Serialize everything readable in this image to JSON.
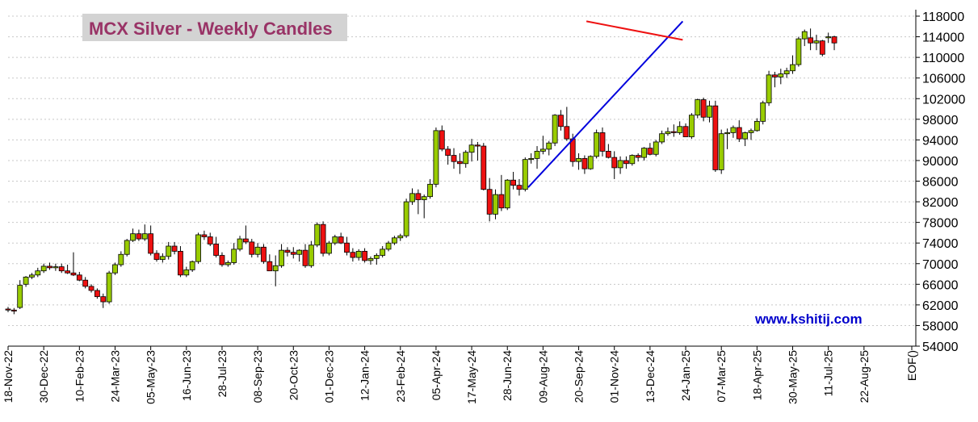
{
  "chart_data": {
    "type": "candlestick",
    "title": "MCX Silver - Weekly Candles",
    "watermark": "www.kshitij.com",
    "y_axis": {
      "ylim": [
        54000,
        118000
      ],
      "ticks": [
        54000,
        58000,
        62000,
        66000,
        70000,
        74000,
        78000,
        82000,
        86000,
        90000,
        94000,
        98000,
        102000,
        106000,
        110000,
        114000,
        118000
      ],
      "position": "right"
    },
    "x_axis": {
      "tick_labels": [
        "18-Nov-22",
        "30-Dec-22",
        "10-Feb-23",
        "24-Mar-23",
        "05-May-23",
        "16-Jun-23",
        "28-Jul-23",
        "08-Sep-23",
        "20-Oct-23",
        "01-Dec-23",
        "12-Jan-24",
        "23-Feb-24",
        "05-Apr-24",
        "17-May-24",
        "28-Jun-24",
        "09-Aug-24",
        "20-Sep-24",
        "01-Nov-24",
        "13-Dec-24",
        "24-Jan-25",
        "07-Mar-25",
        "18-Apr-25",
        "30-May-25",
        "11-Jul-25",
        "22-Aug-25",
        "EOF()"
      ],
      "weeks_between_labels": 6
    },
    "colors": {
      "bull": "#99cc00",
      "bear": "#ee1111",
      "support_line": "#0000dd",
      "resistance_line": "#ee1111",
      "title": "#993366",
      "watermark": "#0000cc"
    },
    "grid": "horizontal-dashed",
    "candles": [
      [
        61200,
        61600,
        60600,
        61000
      ],
      [
        61000,
        61400,
        60200,
        60800
      ],
      [
        61500,
        66800,
        61200,
        65800
      ],
      [
        66000,
        67600,
        65500,
        67400
      ],
      [
        67400,
        68200,
        67000,
        67800
      ],
      [
        67800,
        69200,
        67400,
        68600
      ],
      [
        68600,
        70000,
        68200,
        69500
      ],
      [
        69500,
        70200,
        68800,
        69200
      ],
      [
        69200,
        70000,
        68600,
        69400
      ],
      [
        69400,
        70000,
        68200,
        68600
      ],
      [
        68600,
        69800,
        68000,
        68200
      ],
      [
        68200,
        72200,
        67600,
        67800
      ],
      [
        67800,
        68400,
        66600,
        66800
      ],
      [
        66800,
        67400,
        65200,
        65600
      ],
      [
        65600,
        66000,
        64400,
        64800
      ],
      [
        64800,
        65200,
        63200,
        63600
      ],
      [
        63600,
        64200,
        61400,
        62600
      ],
      [
        62600,
        68600,
        62200,
        68200
      ],
      [
        68200,
        70200,
        67800,
        69800
      ],
      [
        69800,
        72400,
        69400,
        71800
      ],
      [
        71800,
        74800,
        71400,
        74500
      ],
      [
        74500,
        76800,
        74200,
        75800
      ],
      [
        75800,
        76600,
        74400,
        74800
      ],
      [
        74800,
        77600,
        74400,
        75800
      ],
      [
        75800,
        77400,
        71600,
        72000
      ],
      [
        72000,
        72600,
        70400,
        70800
      ],
      [
        70800,
        72000,
        70200,
        71400
      ],
      [
        71400,
        74200,
        70800,
        73400
      ],
      [
        73400,
        74200,
        71800,
        72400
      ],
      [
        72400,
        73400,
        67400,
        67800
      ],
      [
        67800,
        69400,
        67400,
        68800
      ],
      [
        68800,
        70600,
        68400,
        70400
      ],
      [
        70400,
        76000,
        70000,
        75600
      ],
      [
        75600,
        76400,
        74600,
        75200
      ],
      [
        75200,
        76000,
        73400,
        73800
      ],
      [
        73800,
        75200,
        71200,
        71600
      ],
      [
        71600,
        72200,
        69400,
        69800
      ],
      [
        69800,
        70600,
        69400,
        70200
      ],
      [
        70200,
        74000,
        69800,
        72800
      ],
      [
        72800,
        75400,
        72400,
        74800
      ],
      [
        74800,
        77400,
        73800,
        74200
      ],
      [
        74200,
        74800,
        71200,
        71800
      ],
      [
        71800,
        74000,
        71200,
        73200
      ],
      [
        73200,
        73800,
        70000,
        70400
      ],
      [
        70400,
        71800,
        68800,
        68600
      ],
      [
        68600,
        71600,
        65600,
        69600
      ],
      [
        69600,
        73800,
        69200,
        72600
      ],
      [
        72600,
        73200,
        71400,
        72200
      ],
      [
        72200,
        73200,
        71000,
        71800
      ],
      [
        71800,
        72800,
        70400,
        72600
      ],
      [
        72600,
        73800,
        69200,
        69600
      ],
      [
        69600,
        74400,
        69200,
        73600
      ],
      [
        73600,
        78000,
        73200,
        77600
      ],
      [
        77600,
        78200,
        71400,
        72000
      ],
      [
        72000,
        74400,
        71600,
        74000
      ],
      [
        74000,
        75600,
        73600,
        75200
      ],
      [
        75200,
        76000,
        73800,
        74000
      ],
      [
        74000,
        75200,
        71600,
        72200
      ],
      [
        72200,
        73000,
        70400,
        71200
      ],
      [
        71200,
        72800,
        70600,
        72400
      ],
      [
        72400,
        73000,
        70200,
        70600
      ],
      [
        70600,
        71400,
        69800,
        71000
      ],
      [
        71000,
        72000,
        69800,
        71600
      ],
      [
        71600,
        73400,
        71200,
        72800
      ],
      [
        72800,
        74400,
        72400,
        74000
      ],
      [
        74000,
        75400,
        73600,
        75000
      ],
      [
        75000,
        75800,
        74400,
        75400
      ],
      [
        75400,
        82600,
        75000,
        82000
      ],
      [
        82000,
        84600,
        81400,
        83600
      ],
      [
        83600,
        84400,
        79600,
        82400
      ],
      [
        82400,
        83400,
        78800,
        83000
      ],
      [
        83000,
        86400,
        82600,
        85400
      ],
      [
        85400,
        96400,
        84800,
        95800
      ],
      [
        95800,
        96800,
        91800,
        92200
      ],
      [
        92200,
        92800,
        89200,
        91000
      ],
      [
        91000,
        92400,
        88400,
        89800
      ],
      [
        89800,
        91400,
        87400,
        89400
      ],
      [
        89400,
        92000,
        88600,
        91600
      ],
      [
        91600,
        94200,
        89800,
        93000
      ],
      [
        93000,
        93600,
        90000,
        92800
      ],
      [
        92800,
        93400,
        84200,
        84400
      ],
      [
        84400,
        86600,
        78200,
        79600
      ],
      [
        79600,
        84400,
        78600,
        83400
      ],
      [
        83400,
        87200,
        80200,
        80800
      ],
      [
        80800,
        86400,
        80400,
        86200
      ],
      [
        86200,
        87800,
        84400,
        85200
      ],
      [
        85200,
        86400,
        83200,
        84400
      ],
      [
        84400,
        90600,
        84000,
        90200
      ],
      [
        90200,
        91400,
        89400,
        90400
      ],
      [
        90400,
        92800,
        88400,
        91800
      ],
      [
        91800,
        94800,
        91200,
        92200
      ],
      [
        92200,
        93800,
        91000,
        93400
      ],
      [
        93400,
        99000,
        92800,
        98800
      ],
      [
        98800,
        99800,
        95800,
        96600
      ],
      [
        96600,
        100400,
        93800,
        94200
      ],
      [
        94200,
        95200,
        88800,
        89800
      ],
      [
        89800,
        91400,
        88200,
        90400
      ],
      [
        90400,
        91000,
        87400,
        88400
      ],
      [
        88400,
        91000,
        88200,
        90800
      ],
      [
        90800,
        96000,
        90400,
        95400
      ],
      [
        95400,
        96400,
        90800,
        91800
      ],
      [
        91800,
        93200,
        90400,
        90600
      ],
      [
        90600,
        91800,
        86400,
        88600
      ],
      [
        88600,
        90800,
        87400,
        90000
      ],
      [
        90000,
        90800,
        88400,
        89400
      ],
      [
        89400,
        91200,
        89000,
        91000
      ],
      [
        91000,
        91400,
        89800,
        90600
      ],
      [
        90600,
        92600,
        90000,
        92400
      ],
      [
        92400,
        93400,
        91000,
        91200
      ],
      [
        91200,
        94000,
        90800,
        93600
      ],
      [
        93600,
        95800,
        93200,
        95200
      ],
      [
        95200,
        96400,
        94800,
        95600
      ],
      [
        95600,
        97000,
        94600,
        95400
      ],
      [
        95400,
        97600,
        95000,
        96600
      ],
      [
        96600,
        97200,
        94800,
        94600
      ],
      [
        94600,
        99200,
        94200,
        98800
      ],
      [
        98800,
        102000,
        98200,
        101800
      ],
      [
        101800,
        102200,
        97600,
        98400
      ],
      [
        98400,
        101600,
        97400,
        100600
      ],
      [
        100600,
        101600,
        87800,
        88200
      ],
      [
        88200,
        96000,
        87400,
        95200
      ],
      [
        95200,
        96200,
        92200,
        95400
      ],
      [
        95400,
        96800,
        94400,
        96400
      ],
      [
        96400,
        97800,
        93600,
        94200
      ],
      [
        94200,
        95600,
        92800,
        95400
      ],
      [
        95400,
        96200,
        94000,
        95800
      ],
      [
        95800,
        98200,
        95600,
        97600
      ],
      [
        97600,
        101600,
        97000,
        101200
      ],
      [
        101200,
        107400,
        100600,
        106600
      ],
      [
        106600,
        107200,
        104200,
        106200
      ],
      [
        106200,
        107800,
        104800,
        106800
      ],
      [
        106800,
        108000,
        106000,
        107400
      ],
      [
        107400,
        110400,
        106800,
        108600
      ],
      [
        108600,
        114000,
        108200,
        113600
      ],
      [
        113600,
        115400,
        112200,
        115000
      ],
      [
        113800,
        115600,
        111400,
        112800
      ],
      [
        112800,
        114400,
        111400,
        113200
      ],
      [
        113200,
        113400,
        110200,
        110600
      ],
      [
        113800,
        114800,
        112800,
        114000
      ],
      [
        114000,
        114200,
        111400,
        112800
      ]
    ],
    "trendlines": [
      {
        "name": "support",
        "from": [
          87.5,
          84800
        ],
        "to": [
          113.5,
          117000
        ]
      },
      {
        "name": "resistance",
        "from": [
          97.3,
          117000
        ],
        "to": [
          113.5,
          113400
        ]
      }
    ]
  }
}
